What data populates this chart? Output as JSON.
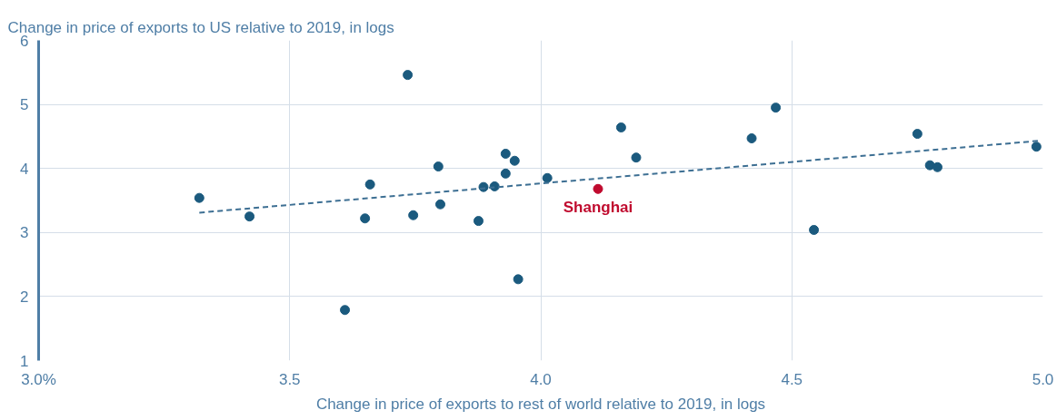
{
  "chart_data": {
    "type": "scatter",
    "ylabel": "Change in price of exports to US relative to 2019, in logs",
    "xlabel": "Change in price of exports to rest of world relative to 2019, in logs",
    "xlim": [
      3.0,
      5.0
    ],
    "xticks": [
      {
        "value": 3.0,
        "label": "3.0%"
      },
      {
        "value": 3.5,
        "label": "3.5"
      },
      {
        "value": 4.0,
        "label": "4.0"
      },
      {
        "value": 4.5,
        "label": "4.5"
      },
      {
        "value": 5.0,
        "label": "5.0"
      }
    ],
    "ylim": [
      1,
      6
    ],
    "yticks": [
      1,
      2,
      3,
      4,
      5,
      6
    ],
    "grid": true,
    "marker": "circle",
    "series": [
      {
        "color": "#1b5a7e",
        "x": [
          3.32,
          3.42,
          3.61,
          3.65,
          3.66,
          3.735,
          3.746,
          3.796,
          3.8,
          3.876,
          3.886,
          3.908,
          3.93,
          3.93,
          3.948,
          3.955,
          4.013,
          4.16,
          4.19,
          4.42,
          4.468,
          4.544,
          4.75,
          4.775,
          4.79,
          4.987
        ],
        "values": [
          3.54,
          3.25,
          1.79,
          3.22,
          3.75,
          5.46,
          3.27,
          4.03,
          3.44,
          3.18,
          3.71,
          3.72,
          4.23,
          3.92,
          4.12,
          2.27,
          3.85,
          4.64,
          4.17,
          4.47,
          4.95,
          3.04,
          4.54,
          4.05,
          4.02,
          4.34
        ]
      },
      {
        "name": "Shanghai",
        "color": "#c00a2e",
        "x": [
          4.114
        ],
        "values": [
          3.68
        ]
      },
      {
        "type": "line",
        "color": "#3d6f93",
        "line_style": "dashed",
        "marker": "none",
        "x": [
          3.32,
          4.99
        ],
        "values": [
          3.31,
          4.43
        ]
      }
    ]
  }
}
